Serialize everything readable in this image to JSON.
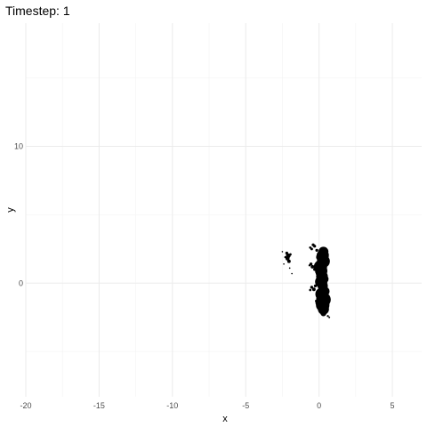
{
  "chart_data": {
    "type": "scatter",
    "title": "Timestep: 1",
    "xlabel": "x",
    "ylabel": "y",
    "xlim": [
      -20,
      7
    ],
    "ylim": [
      -8.3,
      19
    ],
    "grid": true,
    "x_ticks": [
      -20,
      -15,
      -10,
      -5,
      0,
      5
    ],
    "y_ticks": [
      0,
      10
    ],
    "point_color": "#000000",
    "series": [
      {
        "values": [
          {
            "x": -2.1,
            "y": 2.0,
            "r": 0.16
          },
          {
            "x": -2.15,
            "y": 1.8,
            "r": 0.14
          },
          {
            "x": -2.05,
            "y": 1.6,
            "r": 0.12
          },
          {
            "x": -2.2,
            "y": 2.2,
            "r": 0.1
          },
          {
            "x": -1.95,
            "y": 2.1,
            "r": 0.08
          },
          {
            "x": -2.3,
            "y": 1.9,
            "r": 0.07
          },
          {
            "x": -2.0,
            "y": 1.1,
            "r": 0.05
          },
          {
            "x": -1.85,
            "y": 0.7,
            "r": 0.05
          },
          {
            "x": -2.4,
            "y": 1.4,
            "r": 0.05
          },
          {
            "x": -2.5,
            "y": 2.3,
            "r": 0.05
          },
          {
            "x": 0.25,
            "y": 2.0,
            "r": 0.42
          },
          {
            "x": 0.3,
            "y": 1.6,
            "r": 0.44
          },
          {
            "x": 0.1,
            "y": 1.2,
            "r": 0.45
          },
          {
            "x": 0.15,
            "y": 0.9,
            "r": 0.42
          },
          {
            "x": 0.2,
            "y": 0.5,
            "r": 0.4
          },
          {
            "x": 0.15,
            "y": 0.1,
            "r": 0.42
          },
          {
            "x": 0.25,
            "y": -0.2,
            "r": 0.35
          },
          {
            "x": 0.3,
            "y": 2.3,
            "r": 0.34
          },
          {
            "x": 0.05,
            "y": 1.9,
            "r": 0.25
          },
          {
            "x": 0.35,
            "y": 0.3,
            "r": 0.3
          },
          {
            "x": 0.2,
            "y": -0.8,
            "r": 0.45
          },
          {
            "x": 0.3,
            "y": -1.2,
            "r": 0.5
          },
          {
            "x": 0.25,
            "y": -1.6,
            "r": 0.46
          },
          {
            "x": 0.3,
            "y": -1.9,
            "r": 0.38
          },
          {
            "x": 0.05,
            "y": -1.4,
            "r": 0.3
          },
          {
            "x": 0.4,
            "y": -0.6,
            "r": 0.32
          },
          {
            "x": 0.3,
            "y": -2.2,
            "r": 0.2
          },
          {
            "x": -0.4,
            "y": 2.8,
            "r": 0.1
          },
          {
            "x": -0.6,
            "y": 2.6,
            "r": 0.08
          },
          {
            "x": -0.5,
            "y": 2.5,
            "r": 0.09
          },
          {
            "x": -0.3,
            "y": 2.7,
            "r": 0.1
          },
          {
            "x": -0.55,
            "y": 1.4,
            "r": 0.1
          },
          {
            "x": -0.45,
            "y": 1.2,
            "r": 0.12
          },
          {
            "x": -0.3,
            "y": 1.0,
            "r": 0.1
          },
          {
            "x": -0.65,
            "y": 1.3,
            "r": 0.07
          },
          {
            "x": -0.5,
            "y": -0.3,
            "r": 0.1
          },
          {
            "x": -0.35,
            "y": -0.45,
            "r": 0.12
          },
          {
            "x": -0.6,
            "y": -0.5,
            "r": 0.08
          },
          {
            "x": -0.25,
            "y": -0.2,
            "r": 0.1
          },
          {
            "x": 0.6,
            "y": -2.4,
            "r": 0.07
          },
          {
            "x": 0.7,
            "y": -2.5,
            "r": 0.06
          },
          {
            "x": -0.2,
            "y": -1.3,
            "r": 0.08
          },
          {
            "x": -0.15,
            "y": 2.4,
            "r": 0.1
          },
          {
            "x": 0.55,
            "y": 2.1,
            "r": 0.12
          },
          {
            "x": 0.6,
            "y": 1.5,
            "r": 0.1
          },
          {
            "x": -0.1,
            "y": 0.7,
            "r": 0.12
          },
          {
            "x": -0.05,
            "y": 0.2,
            "r": 0.12
          }
        ]
      }
    ]
  }
}
